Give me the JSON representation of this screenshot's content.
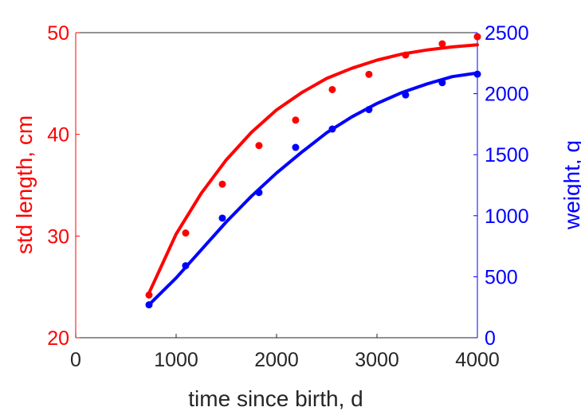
{
  "chart_data": {
    "type": "scatter",
    "title": "",
    "xlabel": "time since birth, d",
    "ylabel_left": "std length, cm",
    "ylabel_right": "weight, g",
    "xlim": [
      0,
      4000
    ],
    "ylim_left": [
      20,
      50
    ],
    "ylim_right": [
      0,
      2500
    ],
    "x_ticks": [
      0,
      1000,
      2000,
      3000,
      4000
    ],
    "y_left_ticks": [
      20,
      30,
      40,
      50
    ],
    "y_right_ticks": [
      0,
      500,
      1000,
      1500,
      2000,
      2500
    ],
    "colors": {
      "left": "#ff0000",
      "right": "#0000ff",
      "axis": "#262626"
    },
    "grid": false,
    "series": [
      {
        "axis": "left",
        "color": "#ff0000",
        "points": {
          "x": [
            730,
            1095,
            1460,
            1825,
            2190,
            2555,
            2920,
            3285,
            3650,
            4015
          ],
          "y": [
            24.2,
            30.3,
            35.1,
            38.9,
            41.4,
            44.4,
            45.9,
            47.8,
            48.9,
            49.6
          ]
        },
        "fit": {
          "x": [
            730,
            1000,
            1250,
            1500,
            1750,
            2000,
            2250,
            2500,
            2750,
            3000,
            3250,
            3500,
            3750,
            4000
          ],
          "y": [
            24.4,
            30.2,
            34.2,
            37.5,
            40.2,
            42.4,
            44.1,
            45.5,
            46.5,
            47.3,
            47.9,
            48.3,
            48.6,
            48.8
          ]
        }
      },
      {
        "axis": "right",
        "color": "#0000ff",
        "points": {
          "x": [
            730,
            1095,
            1460,
            1825,
            2190,
            2555,
            2920,
            3285,
            3650,
            4015
          ],
          "y": [
            270,
            590,
            980,
            1190,
            1560,
            1710,
            1870,
            1990,
            2090,
            2160
          ]
        },
        "fit": {
          "x": [
            730,
            1000,
            1250,
            1500,
            1750,
            2000,
            2250,
            2500,
            2750,
            3000,
            3250,
            3500,
            3750,
            4000
          ],
          "y": [
            270,
            490,
            720,
            950,
            1160,
            1350,
            1520,
            1680,
            1810,
            1920,
            2010,
            2080,
            2140,
            2170
          ]
        }
      }
    ]
  }
}
